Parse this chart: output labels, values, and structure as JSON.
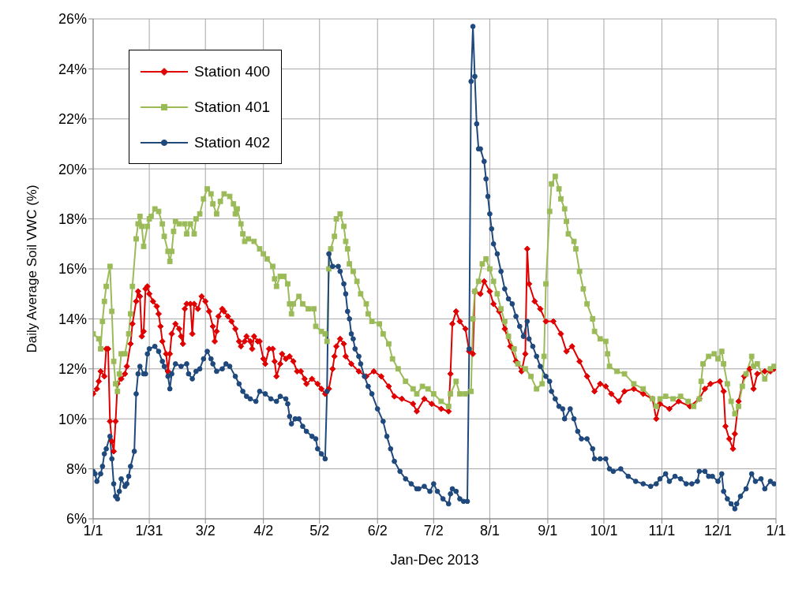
{
  "chart_data": {
    "type": "line",
    "xlabel": "Jan-Dec 2013",
    "ylabel": "Daily Average Soil VWC (%)",
    "xlim": [
      "2013-01-01",
      "2014-01-01"
    ],
    "xticks": [
      {
        "value": "2013-01-01",
        "label": "1/1"
      },
      {
        "value": "2013-01-31",
        "label": "1/31"
      },
      {
        "value": "2013-03-02",
        "label": "3/2"
      },
      {
        "value": "2013-04-02",
        "label": "4/2"
      },
      {
        "value": "2013-05-02",
        "label": "5/2"
      },
      {
        "value": "2013-06-02",
        "label": "6/2"
      },
      {
        "value": "2013-07-02",
        "label": "7/2"
      },
      {
        "value": "2013-08-01",
        "label": "8/1"
      },
      {
        "value": "2013-09-01",
        "label": "9/1"
      },
      {
        "value": "2013-10-01",
        "label": "10/1"
      },
      {
        "value": "2013-11-01",
        "label": "11/1"
      },
      {
        "value": "2013-12-01",
        "label": "12/1"
      },
      {
        "value": "2014-01-01",
        "label": "1/1"
      }
    ],
    "ylim": [
      6,
      26
    ],
    "yticks": [
      {
        "value": 6,
        "label": "6%"
      },
      {
        "value": 8,
        "label": "8%"
      },
      {
        "value": 10,
        "label": "10%"
      },
      {
        "value": 12,
        "label": "12%"
      },
      {
        "value": 14,
        "label": "14%"
      },
      {
        "value": 16,
        "label": "16%"
      },
      {
        "value": 18,
        "label": "18%"
      },
      {
        "value": 20,
        "label": "20%"
      },
      {
        "value": 22,
        "label": "22%"
      },
      {
        "value": 24,
        "label": "24%"
      },
      {
        "value": 26,
        "label": "26%"
      }
    ],
    "grid": true,
    "legend": "top left",
    "line_style": "solid",
    "series": [
      {
        "name": "Station 400",
        "color": "#e00000",
        "marker": "diamond",
        "x": [
          "2013-01-01",
          "2013-01-03",
          "2013-01-04",
          "2013-01-05",
          "2013-01-07",
          "2013-01-08",
          "2013-01-09",
          "2013-01-10",
          "2013-01-11",
          "2013-01-12",
          "2013-01-13",
          "2013-01-14",
          "2013-01-16",
          "2013-01-18",
          "2013-01-19",
          "2013-01-21",
          "2013-01-22",
          "2013-01-24",
          "2013-01-25",
          "2013-01-26",
          "2013-01-27",
          "2013-01-28",
          "2013-01-29",
          "2013-01-30",
          "2013-01-31",
          "2013-02-02",
          "2013-02-04",
          "2013-02-05",
          "2013-02-06",
          "2013-02-07",
          "2013-02-09",
          "2013-02-10",
          "2013-02-11",
          "2013-02-12",
          "2013-02-14",
          "2013-02-16",
          "2013-02-17",
          "2013-02-18",
          "2013-02-19",
          "2013-02-20",
          "2013-02-22",
          "2013-02-23",
          "2013-02-24",
          "2013-02-26",
          "2013-02-28",
          "2013-03-02",
          "2013-03-04",
          "2013-03-06",
          "2013-03-07",
          "2013-03-08",
          "2013-03-09",
          "2013-03-11",
          "2013-03-12",
          "2013-03-14",
          "2013-03-16",
          "2013-03-18",
          "2013-03-20",
          "2013-03-21",
          "2013-03-23",
          "2013-03-24",
          "2013-03-26",
          "2013-03-27",
          "2013-03-28",
          "2013-03-30",
          "2013-03-31",
          "2013-04-02",
          "2013-04-03",
          "2013-04-05",
          "2013-04-07",
          "2013-04-08",
          "2013-04-09",
          "2013-04-11",
          "2013-04-12",
          "2013-04-14",
          "2013-04-16",
          "2013-04-18",
          "2013-04-20",
          "2013-04-22",
          "2013-04-24",
          "2013-04-25",
          "2013-04-28",
          "2013-05-01",
          "2013-05-03",
          "2013-05-05",
          "2013-05-07",
          "2013-05-09",
          "2013-05-10",
          "2013-05-11",
          "2013-05-13",
          "2013-05-15",
          "2013-05-16",
          "2013-05-19",
          "2013-05-23",
          "2013-05-27",
          "2013-05-31",
          "2013-06-04",
          "2013-06-08",
          "2013-06-11",
          "2013-06-15",
          "2013-06-21",
          "2013-06-23",
          "2013-06-27",
          "2013-07-01",
          "2013-07-06",
          "2013-07-10",
          "2013-07-11",
          "2013-07-12",
          "2013-07-14",
          "2013-07-16",
          "2013-07-19",
          "2013-07-21",
          "2013-07-23",
          "2013-07-24",
          "2013-07-27",
          "2013-07-29",
          "2013-08-01",
          "2013-08-03",
          "2013-08-06",
          "2013-08-09",
          "2013-08-12",
          "2013-08-15",
          "2013-08-18",
          "2013-08-20",
          "2013-08-21",
          "2013-08-22",
          "2013-08-25",
          "2013-08-28",
          "2013-08-31",
          "2013-09-04",
          "2013-09-08",
          "2013-09-11",
          "2013-09-14",
          "2013-09-18",
          "2013-09-22",
          "2013-09-26",
          "2013-09-29",
          "2013-10-02",
          "2013-10-05",
          "2013-10-09",
          "2013-10-12",
          "2013-10-17",
          "2013-10-22",
          "2013-10-27",
          "2013-10-29",
          "2013-10-31",
          "2013-11-05",
          "2013-11-10",
          "2013-11-16",
          "2013-11-21",
          "2013-11-24",
          "2013-11-27",
          "2013-12-02",
          "2013-12-04",
          "2013-12-05",
          "2013-12-07",
          "2013-12-09",
          "2013-12-10",
          "2013-12-12",
          "2013-12-15",
          "2013-12-18",
          "2013-12-20",
          "2013-12-22",
          "2013-12-26",
          "2013-12-29",
          "2013-12-31"
        ],
        "values": [
          11.0,
          11.2,
          11.5,
          11.9,
          11.7,
          12.8,
          12.8,
          9.9,
          9.1,
          8.7,
          9.9,
          11.4,
          11.6,
          11.8,
          12.1,
          13.0,
          13.8,
          14.7,
          15.1,
          14.9,
          13.3,
          13.5,
          15.2,
          15.3,
          15.0,
          14.7,
          14.5,
          14.2,
          13.7,
          13.1,
          12.6,
          11.9,
          12.6,
          13.4,
          13.8,
          13.6,
          13.3,
          13.0,
          14.4,
          14.6,
          14.6,
          13.4,
          14.6,
          14.4,
          14.9,
          14.7,
          14.3,
          13.7,
          13.1,
          13.5,
          14.1,
          14.4,
          14.3,
          14.1,
          13.9,
          13.6,
          13.1,
          12.9,
          13.1,
          13.3,
          13.1,
          12.8,
          13.3,
          13.1,
          13.1,
          12.4,
          12.2,
          12.8,
          12.8,
          12.3,
          11.7,
          12.2,
          12.6,
          12.4,
          12.5,
          12.3,
          11.9,
          11.9,
          11.6,
          11.4,
          11.6,
          11.4,
          11.2,
          11.0,
          11.2,
          12.0,
          12.5,
          12.9,
          13.2,
          13.0,
          12.5,
          12.2,
          11.9,
          11.7,
          11.9,
          11.7,
          11.3,
          10.9,
          10.8,
          10.6,
          10.3,
          10.8,
          10.6,
          10.4,
          10.3,
          11.8,
          13.8,
          14.3,
          13.9,
          13.6,
          12.7,
          12.6,
          15.1,
          15.0,
          15.5,
          15.1,
          14.6,
          14.3,
          13.6,
          12.9,
          12.3,
          11.9,
          12.6,
          16.8,
          15.4,
          14.7,
          14.4,
          13.9,
          13.9,
          13.4,
          12.7,
          12.9,
          12.3,
          11.7,
          11.1,
          11.4,
          11.3,
          11.0,
          10.7,
          11.1,
          11.2,
          11.0,
          10.8,
          10.0,
          10.6,
          10.4,
          10.7,
          10.5,
          10.8,
          11.2,
          11.4,
          11.5,
          11.1,
          9.7,
          9.2,
          8.8,
          9.4,
          10.7,
          11.7,
          12.0,
          11.2,
          11.8,
          11.9,
          11.9,
          12.0
        ]
      },
      {
        "name": "Station 401",
        "color": "#9bbb59",
        "marker": "square",
        "x": [
          "2013-01-01",
          "2013-01-04",
          "2013-01-05",
          "2013-01-06",
          "2013-01-07",
          "2013-01-08",
          "2013-01-10",
          "2013-01-11",
          "2013-01-12",
          "2013-01-13",
          "2013-01-14",
          "2013-01-15",
          "2013-01-16",
          "2013-01-18",
          "2013-01-20",
          "2013-01-21",
          "2013-01-22",
          "2013-01-24",
          "2013-01-25",
          "2013-01-26",
          "2013-01-27",
          "2013-01-28",
          "2013-01-30",
          "2013-01-31",
          "2013-02-01",
          "2013-02-03",
          "2013-02-05",
          "2013-02-07",
          "2013-02-08",
          "2013-02-10",
          "2013-02-11",
          "2013-02-12",
          "2013-02-13",
          "2013-02-14",
          "2013-02-16",
          "2013-02-19",
          "2013-02-20",
          "2013-02-22",
          "2013-02-24",
          "2013-02-25",
          "2013-02-27",
          "2013-03-01",
          "2013-03-03",
          "2013-03-05",
          "2013-03-06",
          "2013-03-08",
          "2013-03-10",
          "2013-03-12",
          "2013-03-15",
          "2013-03-17",
          "2013-03-18",
          "2013-03-19",
          "2013-03-21",
          "2013-03-22",
          "2013-03-23",
          "2013-03-25",
          "2013-03-28",
          "2013-03-31",
          "2013-04-02",
          "2013-04-04",
          "2013-04-07",
          "2013-04-08",
          "2013-04-09",
          "2013-04-11",
          "2013-04-13",
          "2013-04-15",
          "2013-04-16",
          "2013-04-17",
          "2013-04-18",
          "2013-04-21",
          "2013-04-23",
          "2013-04-26",
          "2013-04-29",
          "2013-04-30",
          "2013-05-03",
          "2013-05-05",
          "2013-05-06",
          "2013-05-07",
          "2013-05-08",
          "2013-05-10",
          "2013-05-11",
          "2013-05-13",
          "2013-05-15",
          "2013-05-16",
          "2013-05-17",
          "2013-05-18",
          "2013-05-20",
          "2013-05-22",
          "2013-05-24",
          "2013-05-27",
          "2013-05-28",
          "2013-05-30",
          "2013-06-03",
          "2013-06-05",
          "2013-06-08",
          "2013-06-10",
          "2013-06-13",
          "2013-06-17",
          "2013-06-21",
          "2013-06-23",
          "2013-06-26",
          "2013-06-29",
          "2013-07-02",
          "2013-07-06",
          "2013-07-10",
          "2013-07-11",
          "2013-07-14",
          "2013-07-16",
          "2013-07-19",
          "2013-07-22",
          "2013-07-23",
          "2013-07-24",
          "2013-07-26",
          "2013-07-28",
          "2013-07-30",
          "2013-08-01",
          "2013-08-03",
          "2013-08-05",
          "2013-08-07",
          "2013-08-09",
          "2013-08-11",
          "2013-08-14",
          "2013-08-16",
          "2013-08-20",
          "2013-08-23",
          "2013-08-26",
          "2013-08-29",
          "2013-08-30",
          "2013-08-31",
          "2013-09-02",
          "2013-09-03",
          "2013-09-05",
          "2013-09-07",
          "2013-09-08",
          "2013-09-10",
          "2013-09-11",
          "2013-09-12",
          "2013-09-15",
          "2013-09-16",
          "2013-09-18",
          "2013-09-20",
          "2013-09-22",
          "2013-09-25",
          "2013-09-26",
          "2013-09-29",
          "2013-10-02",
          "2013-10-03",
          "2013-10-04",
          "2013-10-08",
          "2013-10-12",
          "2013-10-17",
          "2013-10-22",
          "2013-10-27",
          "2013-10-29",
          "2013-10-31",
          "2013-11-03",
          "2013-11-07",
          "2013-11-11",
          "2013-11-15",
          "2013-11-18",
          "2013-11-21",
          "2013-11-22",
          "2013-11-23",
          "2013-11-26",
          "2013-11-29",
          "2013-12-01",
          "2013-12-03",
          "2013-12-04",
          "2013-12-06",
          "2013-12-08",
          "2013-12-10",
          "2013-12-12",
          "2013-12-14",
          "2013-12-16",
          "2013-12-19",
          "2013-12-20",
          "2013-12-22",
          "2013-12-26",
          "2013-12-29",
          "2013-12-31"
        ],
        "values": [
          13.4,
          13.2,
          12.8,
          13.9,
          14.7,
          15.3,
          16.1,
          14.3,
          12.3,
          11.4,
          11.1,
          11.8,
          12.6,
          12.6,
          13.4,
          14.2,
          15.3,
          17.2,
          17.8,
          18.1,
          17.7,
          16.9,
          17.7,
          18.0,
          18.1,
          18.4,
          18.3,
          17.8,
          17.3,
          16.7,
          16.3,
          16.7,
          17.5,
          17.9,
          17.8,
          17.8,
          17.4,
          17.8,
          17.4,
          18.0,
          18.2,
          18.8,
          19.2,
          19.0,
          18.6,
          18.2,
          18.7,
          19.0,
          18.9,
          18.6,
          18.2,
          18.4,
          17.8,
          17.4,
          17.1,
          17.2,
          17.1,
          16.8,
          16.6,
          16.4,
          16.1,
          15.6,
          15.3,
          15.7,
          15.7,
          15.4,
          14.6,
          14.2,
          14.6,
          14.9,
          14.6,
          14.4,
          14.4,
          13.7,
          13.5,
          13.4,
          13.1,
          16.0,
          16.8,
          17.3,
          18.0,
          18.2,
          17.7,
          17.1,
          16.8,
          16.2,
          15.9,
          15.5,
          15.0,
          14.6,
          14.2,
          13.9,
          13.8,
          13.4,
          13.0,
          12.4,
          12.0,
          11.5,
          11.2,
          11.0,
          11.3,
          11.2,
          11.0,
          10.7,
          10.5,
          11.0,
          11.5,
          11.0,
          11.0,
          11.1,
          14.0,
          15.1,
          15.5,
          16.2,
          16.4,
          16.0,
          15.5,
          15.0,
          14.4,
          13.9,
          13.3,
          12.8,
          12.2,
          12.0,
          11.7,
          11.2,
          11.4,
          12.5,
          15.4,
          18.3,
          19.4,
          19.7,
          19.2,
          18.8,
          18.4,
          17.9,
          17.4,
          17.1,
          16.8,
          15.9,
          15.2,
          14.6,
          14.0,
          13.5,
          13.2,
          13.1,
          12.6,
          12.1,
          11.9,
          11.8,
          11.4,
          11.2,
          10.8,
          10.5,
          10.8,
          10.9,
          10.8,
          10.9,
          10.7,
          10.5,
          10.8,
          11.5,
          12.2,
          12.5,
          12.6,
          12.4,
          12.7,
          12.2,
          11.4,
          10.7,
          10.2,
          10.5,
          11.3,
          11.8,
          12.5,
          12.1,
          12.2,
          11.6,
          12.0,
          12.1
        ]
      },
      {
        "name": "Station 402",
        "color": "#1f497d",
        "marker": "circle",
        "x": [
          "2013-01-01",
          "2013-01-02",
          "2013-01-03",
          "2013-01-05",
          "2013-01-06",
          "2013-01-07",
          "2013-01-08",
          "2013-01-10",
          "2013-01-11",
          "2013-01-12",
          "2013-01-13",
          "2013-01-14",
          "2013-01-15",
          "2013-01-16",
          "2013-01-18",
          "2013-01-19",
          "2013-01-20",
          "2013-01-21",
          "2013-01-23",
          "2013-01-24",
          "2013-01-25",
          "2013-01-26",
          "2013-01-28",
          "2013-01-29",
          "2013-01-30",
          "2013-01-31",
          "2013-02-03",
          "2013-02-05",
          "2013-02-07",
          "2013-02-08",
          "2013-02-10",
          "2013-02-11",
          "2013-02-12",
          "2013-02-14",
          "2013-02-17",
          "2013-02-20",
          "2013-02-21",
          "2013-02-23",
          "2013-02-25",
          "2013-02-27",
          "2013-03-01",
          "2013-03-03",
          "2013-03-05",
          "2013-03-06",
          "2013-03-08",
          "2013-03-11",
          "2013-03-13",
          "2013-03-15",
          "2013-03-18",
          "2013-03-20",
          "2013-03-22",
          "2013-03-24",
          "2013-03-26",
          "2013-03-29",
          "2013-03-31",
          "2013-04-03",
          "2013-04-06",
          "2013-04-09",
          "2013-04-11",
          "2013-04-14",
          "2013-04-15",
          "2013-04-16",
          "2013-04-17",
          "2013-04-19",
          "2013-04-21",
          "2013-04-23",
          "2013-04-25",
          "2013-04-28",
          "2013-04-30",
          "2013-05-01",
          "2013-05-03",
          "2013-05-05",
          "2013-05-06",
          "2013-05-07",
          "2013-05-09",
          "2013-05-12",
          "2013-05-13",
          "2013-05-15",
          "2013-05-16",
          "2013-05-17",
          "2013-05-18",
          "2013-05-19",
          "2013-05-20",
          "2013-05-21",
          "2013-05-23",
          "2013-05-24",
          "2013-05-26",
          "2013-05-28",
          "2013-05-30",
          "2013-06-02",
          "2013-06-05",
          "2013-06-07",
          "2013-06-09",
          "2013-06-11",
          "2013-06-14",
          "2013-06-17",
          "2013-06-20",
          "2013-06-23",
          "2013-06-24",
          "2013-06-27",
          "2013-06-30",
          "2013-07-02",
          "2013-07-04",
          "2013-07-07",
          "2013-07-10",
          "2013-07-11",
          "2013-07-12",
          "2013-07-14",
          "2013-07-16",
          "2013-07-18",
          "2013-07-20",
          "2013-07-21",
          "2013-07-22",
          "2013-07-23",
          "2013-07-24",
          "2013-07-25",
          "2013-07-26",
          "2013-07-27",
          "2013-07-29",
          "2013-07-30",
          "2013-07-31",
          "2013-08-01",
          "2013-08-02",
          "2013-08-03",
          "2013-08-05",
          "2013-08-07",
          "2013-08-09",
          "2013-08-11",
          "2013-08-13",
          "2013-08-15",
          "2013-08-17",
          "2013-08-19",
          "2013-08-21",
          "2013-08-22",
          "2013-08-24",
          "2013-08-26",
          "2013-08-28",
          "2013-08-31",
          "2013-09-02",
          "2013-09-03",
          "2013-09-05",
          "2013-09-07",
          "2013-09-09",
          "2013-09-10",
          "2013-09-13",
          "2013-09-15",
          "2013-09-17",
          "2013-09-19",
          "2013-09-22",
          "2013-09-25",
          "2013-09-26",
          "2013-09-29",
          "2013-10-02",
          "2013-10-04",
          "2013-10-06",
          "2013-10-10",
          "2013-10-14",
          "2013-10-18",
          "2013-10-22",
          "2013-10-26",
          "2013-10-29",
          "2013-10-31",
          "2013-11-03",
          "2013-11-05",
          "2013-11-08",
          "2013-11-11",
          "2013-11-14",
          "2013-11-17",
          "2013-11-20",
          "2013-11-21",
          "2013-11-24",
          "2013-11-26",
          "2013-11-28",
          "2013-12-01",
          "2013-12-03",
          "2013-12-04",
          "2013-12-06",
          "2013-12-08",
          "2013-12-10",
          "2013-12-11",
          "2013-12-13",
          "2013-12-16",
          "2013-12-19",
          "2013-12-21",
          "2013-12-24",
          "2013-12-26",
          "2013-12-29",
          "2013-12-31"
        ],
        "values": [
          7.9,
          7.8,
          7.5,
          7.8,
          8.1,
          8.6,
          8.8,
          9.3,
          8.4,
          7.4,
          6.9,
          6.8,
          7.1,
          7.6,
          7.3,
          7.4,
          7.7,
          8.1,
          8.7,
          11.0,
          11.8,
          12.1,
          11.8,
          11.8,
          12.6,
          12.8,
          12.9,
          12.7,
          12.3,
          12.1,
          11.7,
          11.2,
          11.8,
          12.2,
          12.1,
          12.2,
          11.8,
          11.6,
          11.9,
          12.0,
          12.4,
          12.7,
          12.4,
          12.2,
          11.9,
          12.0,
          12.2,
          12.1,
          11.7,
          11.4,
          11.1,
          10.9,
          10.8,
          10.7,
          11.1,
          11.0,
          10.8,
          10.7,
          10.9,
          10.8,
          10.6,
          10.1,
          9.8,
          10.0,
          10.0,
          9.7,
          9.5,
          9.3,
          9.2,
          8.8,
          8.6,
          8.4,
          11.1,
          16.6,
          16.1,
          16.1,
          15.9,
          15.4,
          15.0,
          14.3,
          14.0,
          13.4,
          13.2,
          12.8,
          12.5,
          12.2,
          11.7,
          11.3,
          11.0,
          10.4,
          9.9,
          9.3,
          8.8,
          8.3,
          7.9,
          7.6,
          7.4,
          7.2,
          7.2,
          7.3,
          7.1,
          7.4,
          7.1,
          6.8,
          6.6,
          7.0,
          7.2,
          7.1,
          6.8,
          6.7,
          6.7,
          12.8,
          23.5,
          25.7,
          23.7,
          21.8,
          20.8,
          20.8,
          20.3,
          19.6,
          18.9,
          18.2,
          17.6,
          17.0,
          16.6,
          15.9,
          15.2,
          14.8,
          14.6,
          14.1,
          13.7,
          13.3,
          13.9,
          13.2,
          12.9,
          12.5,
          12.1,
          11.7,
          11.5,
          11.1,
          10.8,
          10.5,
          10.4,
          10.0,
          10.4,
          10.0,
          9.5,
          9.2,
          9.2,
          8.8,
          8.4,
          8.4,
          8.4,
          8.0,
          7.9,
          8.0,
          7.7,
          7.5,
          7.4,
          7.3,
          7.4,
          7.6,
          7.8,
          7.5,
          7.7,
          7.6,
          7.4,
          7.4,
          7.5,
          7.9,
          7.9,
          7.7,
          7.7,
          7.5,
          7.8,
          7.1,
          6.8,
          6.6,
          6.4,
          6.6,
          6.9,
          7.2,
          7.8,
          7.5,
          7.6,
          7.2,
          7.5,
          7.4
        ]
      }
    ]
  }
}
